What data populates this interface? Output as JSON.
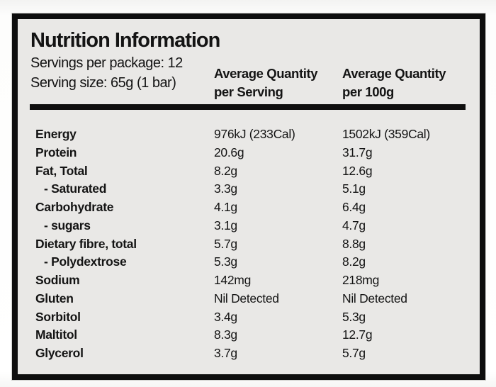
{
  "panel": {
    "title": "Nutrition Information",
    "servings_per_package": "Servings per package: 12",
    "serving_size": "Serving size: 65g (1 bar)"
  },
  "table": {
    "columns": [
      {
        "line1": "Average Quantity",
        "line2": "per Serving"
      },
      {
        "line1": "Average Quantity",
        "line2": "per 100g"
      }
    ],
    "rows": [
      {
        "nutrient": "Energy",
        "per_serving": "976kJ (233Cal)",
        "per_100g": "1502kJ (359Cal)",
        "indent": false
      },
      {
        "nutrient": "Protein",
        "per_serving": "20.6g",
        "per_100g": "31.7g",
        "indent": false
      },
      {
        "nutrient": "Fat, Total",
        "per_serving": "8.2g",
        "per_100g": "12.6g",
        "indent": false
      },
      {
        "nutrient": "- Saturated",
        "per_serving": "3.3g",
        "per_100g": "5.1g",
        "indent": true
      },
      {
        "nutrient": "Carbohydrate",
        "per_serving": "4.1g",
        "per_100g": "6.4g",
        "indent": false
      },
      {
        "nutrient": "- sugars",
        "per_serving": "3.1g",
        "per_100g": "4.7g",
        "indent": true
      },
      {
        "nutrient": "Dietary fibre, total",
        "per_serving": "5.7g",
        "per_100g": "8.8g",
        "indent": false
      },
      {
        "nutrient": "- Polydextrose",
        "per_serving": "5.3g",
        "per_100g": "8.2g",
        "indent": true
      },
      {
        "nutrient": "Sodium",
        "per_serving": "142mg",
        "per_100g": "218mg",
        "indent": false
      },
      {
        "nutrient": "Gluten",
        "per_serving": "Nil Detected",
        "per_100g": "Nil Detected",
        "indent": false
      },
      {
        "nutrient": "Sorbitol",
        "per_serving": "3.4g",
        "per_100g": "5.3g",
        "indent": false
      },
      {
        "nutrient": "Maltitol",
        "per_serving": "8.3g",
        "per_100g": "12.7g",
        "indent": false
      },
      {
        "nutrient": "Glycerol",
        "per_serving": "3.7g",
        "per_100g": "5.7g",
        "indent": false
      }
    ]
  },
  "colors": {
    "panel_background": "#e9e8e6",
    "border": "#0e0e0e",
    "text": "#141414"
  }
}
